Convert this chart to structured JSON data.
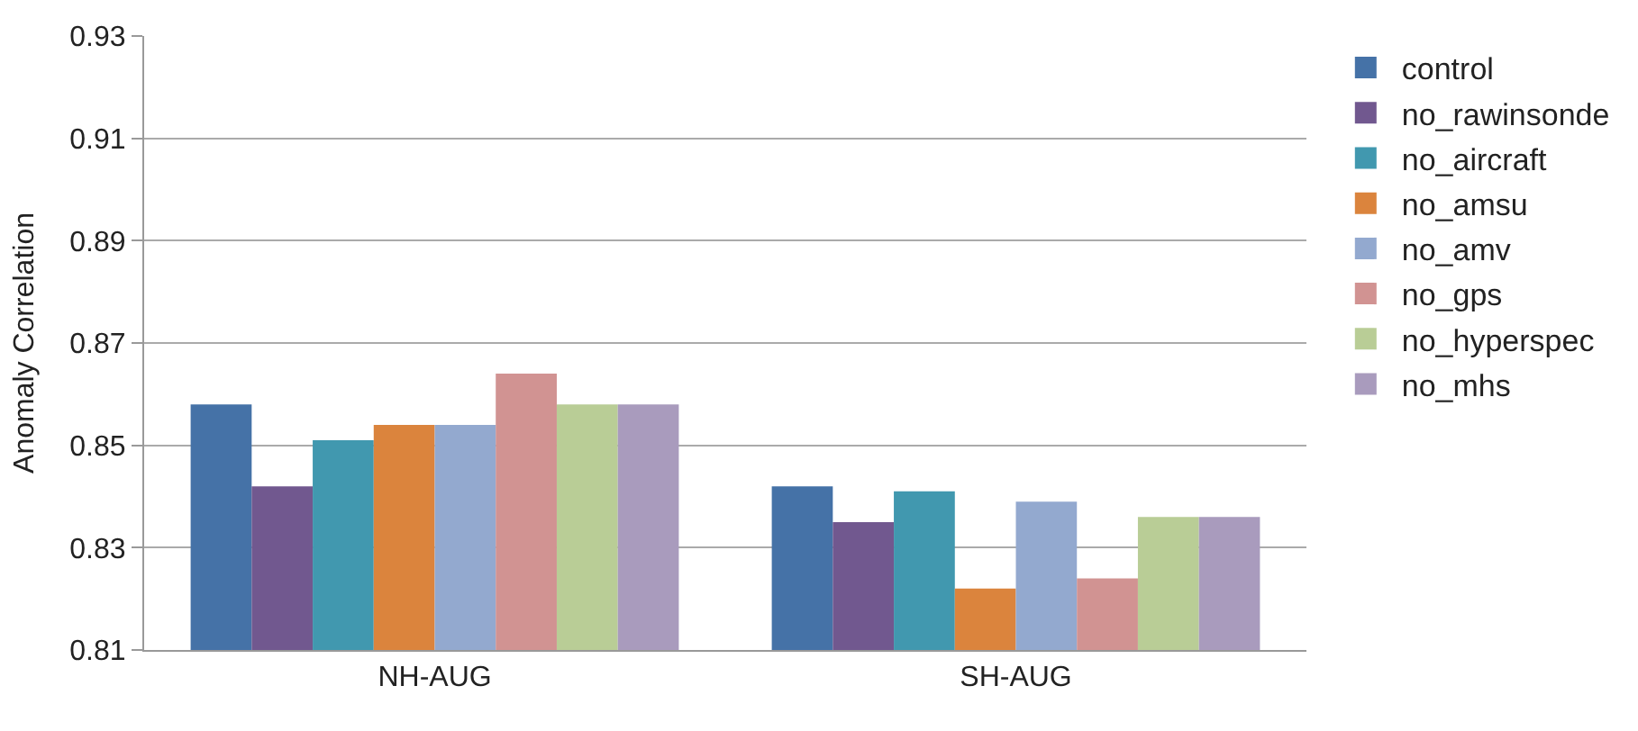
{
  "chart_data": {
    "type": "bar",
    "ylabel": "Anomaly Correlation",
    "categories": [
      "NH-AUG",
      "SH-AUG"
    ],
    "series": [
      {
        "name": "control",
        "color": "#4572a7",
        "values": [
          0.858,
          0.842
        ]
      },
      {
        "name": "no_rawinsonde",
        "color": "#71588f",
        "values": [
          0.842,
          0.835
        ]
      },
      {
        "name": "no_aircraft",
        "color": "#4198af",
        "values": [
          0.851,
          0.841
        ]
      },
      {
        "name": "no_amsu",
        "color": "#db843d",
        "values": [
          0.854,
          0.822
        ]
      },
      {
        "name": "no_amv",
        "color": "#93a9cf",
        "values": [
          0.854,
          0.839
        ]
      },
      {
        "name": "no_gps",
        "color": "#d19392",
        "values": [
          0.864,
          0.824
        ]
      },
      {
        "name": "no_hyperspec",
        "color": "#b9cd96",
        "values": [
          0.858,
          0.836
        ]
      },
      {
        "name": "no_mhs",
        "color": "#a99bbd",
        "values": [
          0.858,
          0.836
        ]
      }
    ],
    "ylim": [
      0.81,
      0.93
    ],
    "yticks": [
      0.81,
      0.83,
      0.85,
      0.87,
      0.89,
      0.91,
      0.93
    ],
    "grid": "y",
    "legend": "right"
  }
}
